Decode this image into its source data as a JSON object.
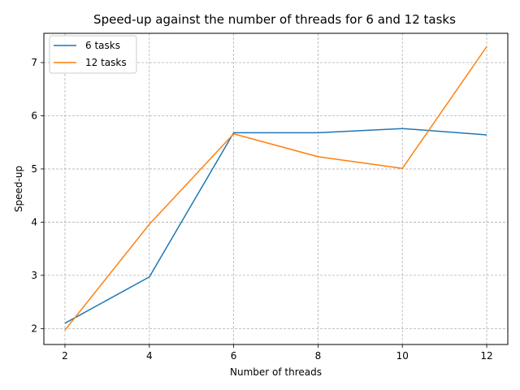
{
  "chart_data": {
    "type": "line",
    "title": "Speed-up against the number of threads for 6 and 12 tasks",
    "xlabel": "Number of threads",
    "ylabel": "Speed-up",
    "x": [
      2,
      4,
      6,
      8,
      10,
      12
    ],
    "xlim": [
      1.5,
      12.5
    ],
    "ylim": [
      1.7,
      7.55
    ],
    "xticks": [
      2,
      4,
      6,
      8,
      10,
      12
    ],
    "yticks": [
      2,
      3,
      4,
      5,
      6,
      7
    ],
    "grid": true,
    "grid_style": "dashed",
    "legend_position": "upper-left",
    "series": [
      {
        "name": "6 tasks",
        "color": "#1f77b4",
        "values": [
          2.1,
          2.97,
          5.68,
          5.68,
          5.76,
          5.64
        ]
      },
      {
        "name": "12 tasks",
        "color": "#ff7f0e",
        "values": [
          1.97,
          3.96,
          5.66,
          5.23,
          5.01,
          7.3
        ]
      }
    ]
  }
}
